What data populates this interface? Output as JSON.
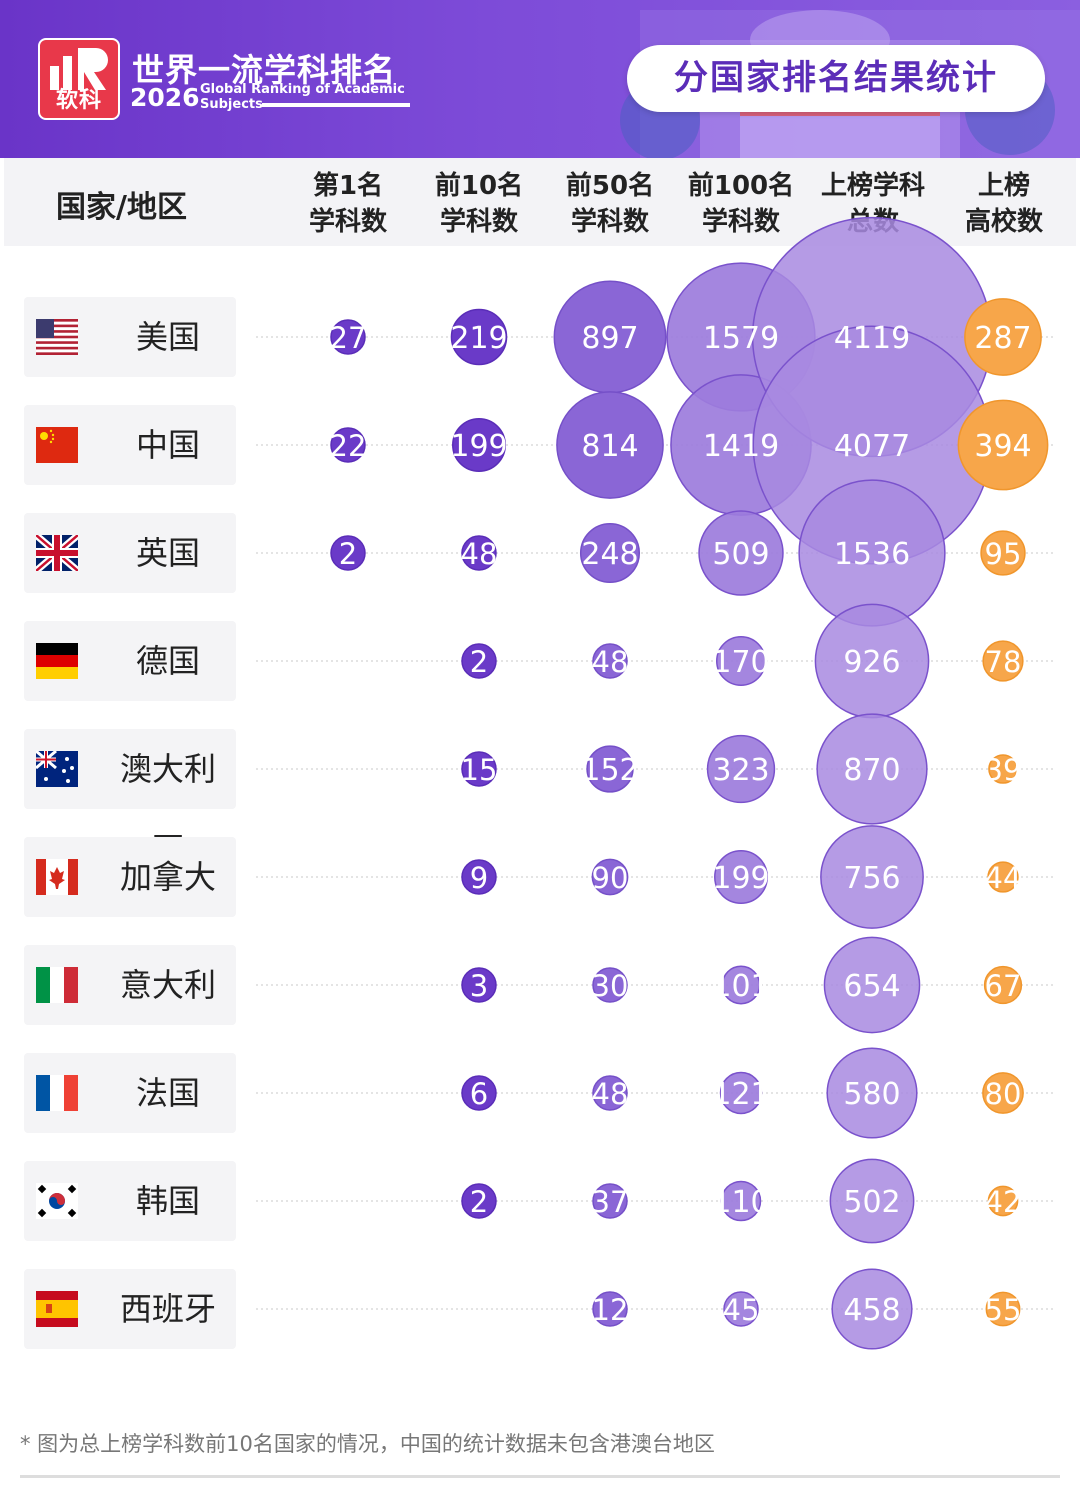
{
  "header": {
    "logo_text": "软科",
    "brand_title": "世界一流学科排名",
    "brand_year": "2026",
    "brand_en_line1": "Global Ranking of Academic",
    "brand_en_line2": "Subjects",
    "pill_title": "分国家排名结果统计"
  },
  "columns": {
    "country": "国家/地区",
    "c1": [
      "第1名",
      "学科数"
    ],
    "c2": [
      "前10名",
      "学科数"
    ],
    "c3": [
      "前50名",
      "学科数"
    ],
    "c4": [
      "前100名",
      "学科数"
    ],
    "c5": [
      "上榜学科",
      "总数"
    ],
    "c6": [
      "上榜",
      "高校数"
    ]
  },
  "colors": {
    "purple_dark": "#6a3ac8",
    "purple_light": "#9c7cdc",
    "orange": "#f7a64a",
    "orange_edge": "#f0962c"
  },
  "chart_data": {
    "type": "table",
    "series_names": [
      "第1名学科数",
      "前10名学科数",
      "前50名学科数",
      "前100名学科数",
      "上榜学科总数",
      "上榜高校数"
    ],
    "rows": [
      {
        "country": "美国",
        "flag": "usa-flag-icon",
        "values": [
          27,
          219,
          897,
          1579,
          4119,
          287
        ]
      },
      {
        "country": "中国",
        "flag": "china-flag-icon",
        "values": [
          22,
          199,
          814,
          1419,
          4077,
          394
        ]
      },
      {
        "country": "英国",
        "flag": "uk-flag-icon",
        "values": [
          2,
          48,
          248,
          509,
          1536,
          95
        ]
      },
      {
        "country": "德国",
        "flag": "germany-flag-icon",
        "values": [
          null,
          2,
          48,
          170,
          926,
          78
        ]
      },
      {
        "country": "澳大利亚",
        "flag": "australia-flag-icon",
        "values": [
          null,
          15,
          152,
          323,
          870,
          39
        ]
      },
      {
        "country": "加拿大",
        "flag": "canada-flag-icon",
        "values": [
          null,
          9,
          90,
          199,
          756,
          44
        ]
      },
      {
        "country": "意大利",
        "flag": "italy-flag-icon",
        "values": [
          null,
          3,
          30,
          101,
          654,
          67
        ]
      },
      {
        "country": "法国",
        "flag": "france-flag-icon",
        "values": [
          null,
          6,
          48,
          121,
          580,
          80
        ]
      },
      {
        "country": "韩国",
        "flag": "korea-flag-icon",
        "values": [
          null,
          2,
          37,
          110,
          502,
          42
        ]
      },
      {
        "country": "西班牙",
        "flag": "spain-flag-icon",
        "values": [
          null,
          null,
          12,
          45,
          458,
          55
        ]
      }
    ]
  },
  "footnote": "* 图为总上榜学科数前10名国家的情况，中国的统计数据未包含港澳台地区"
}
